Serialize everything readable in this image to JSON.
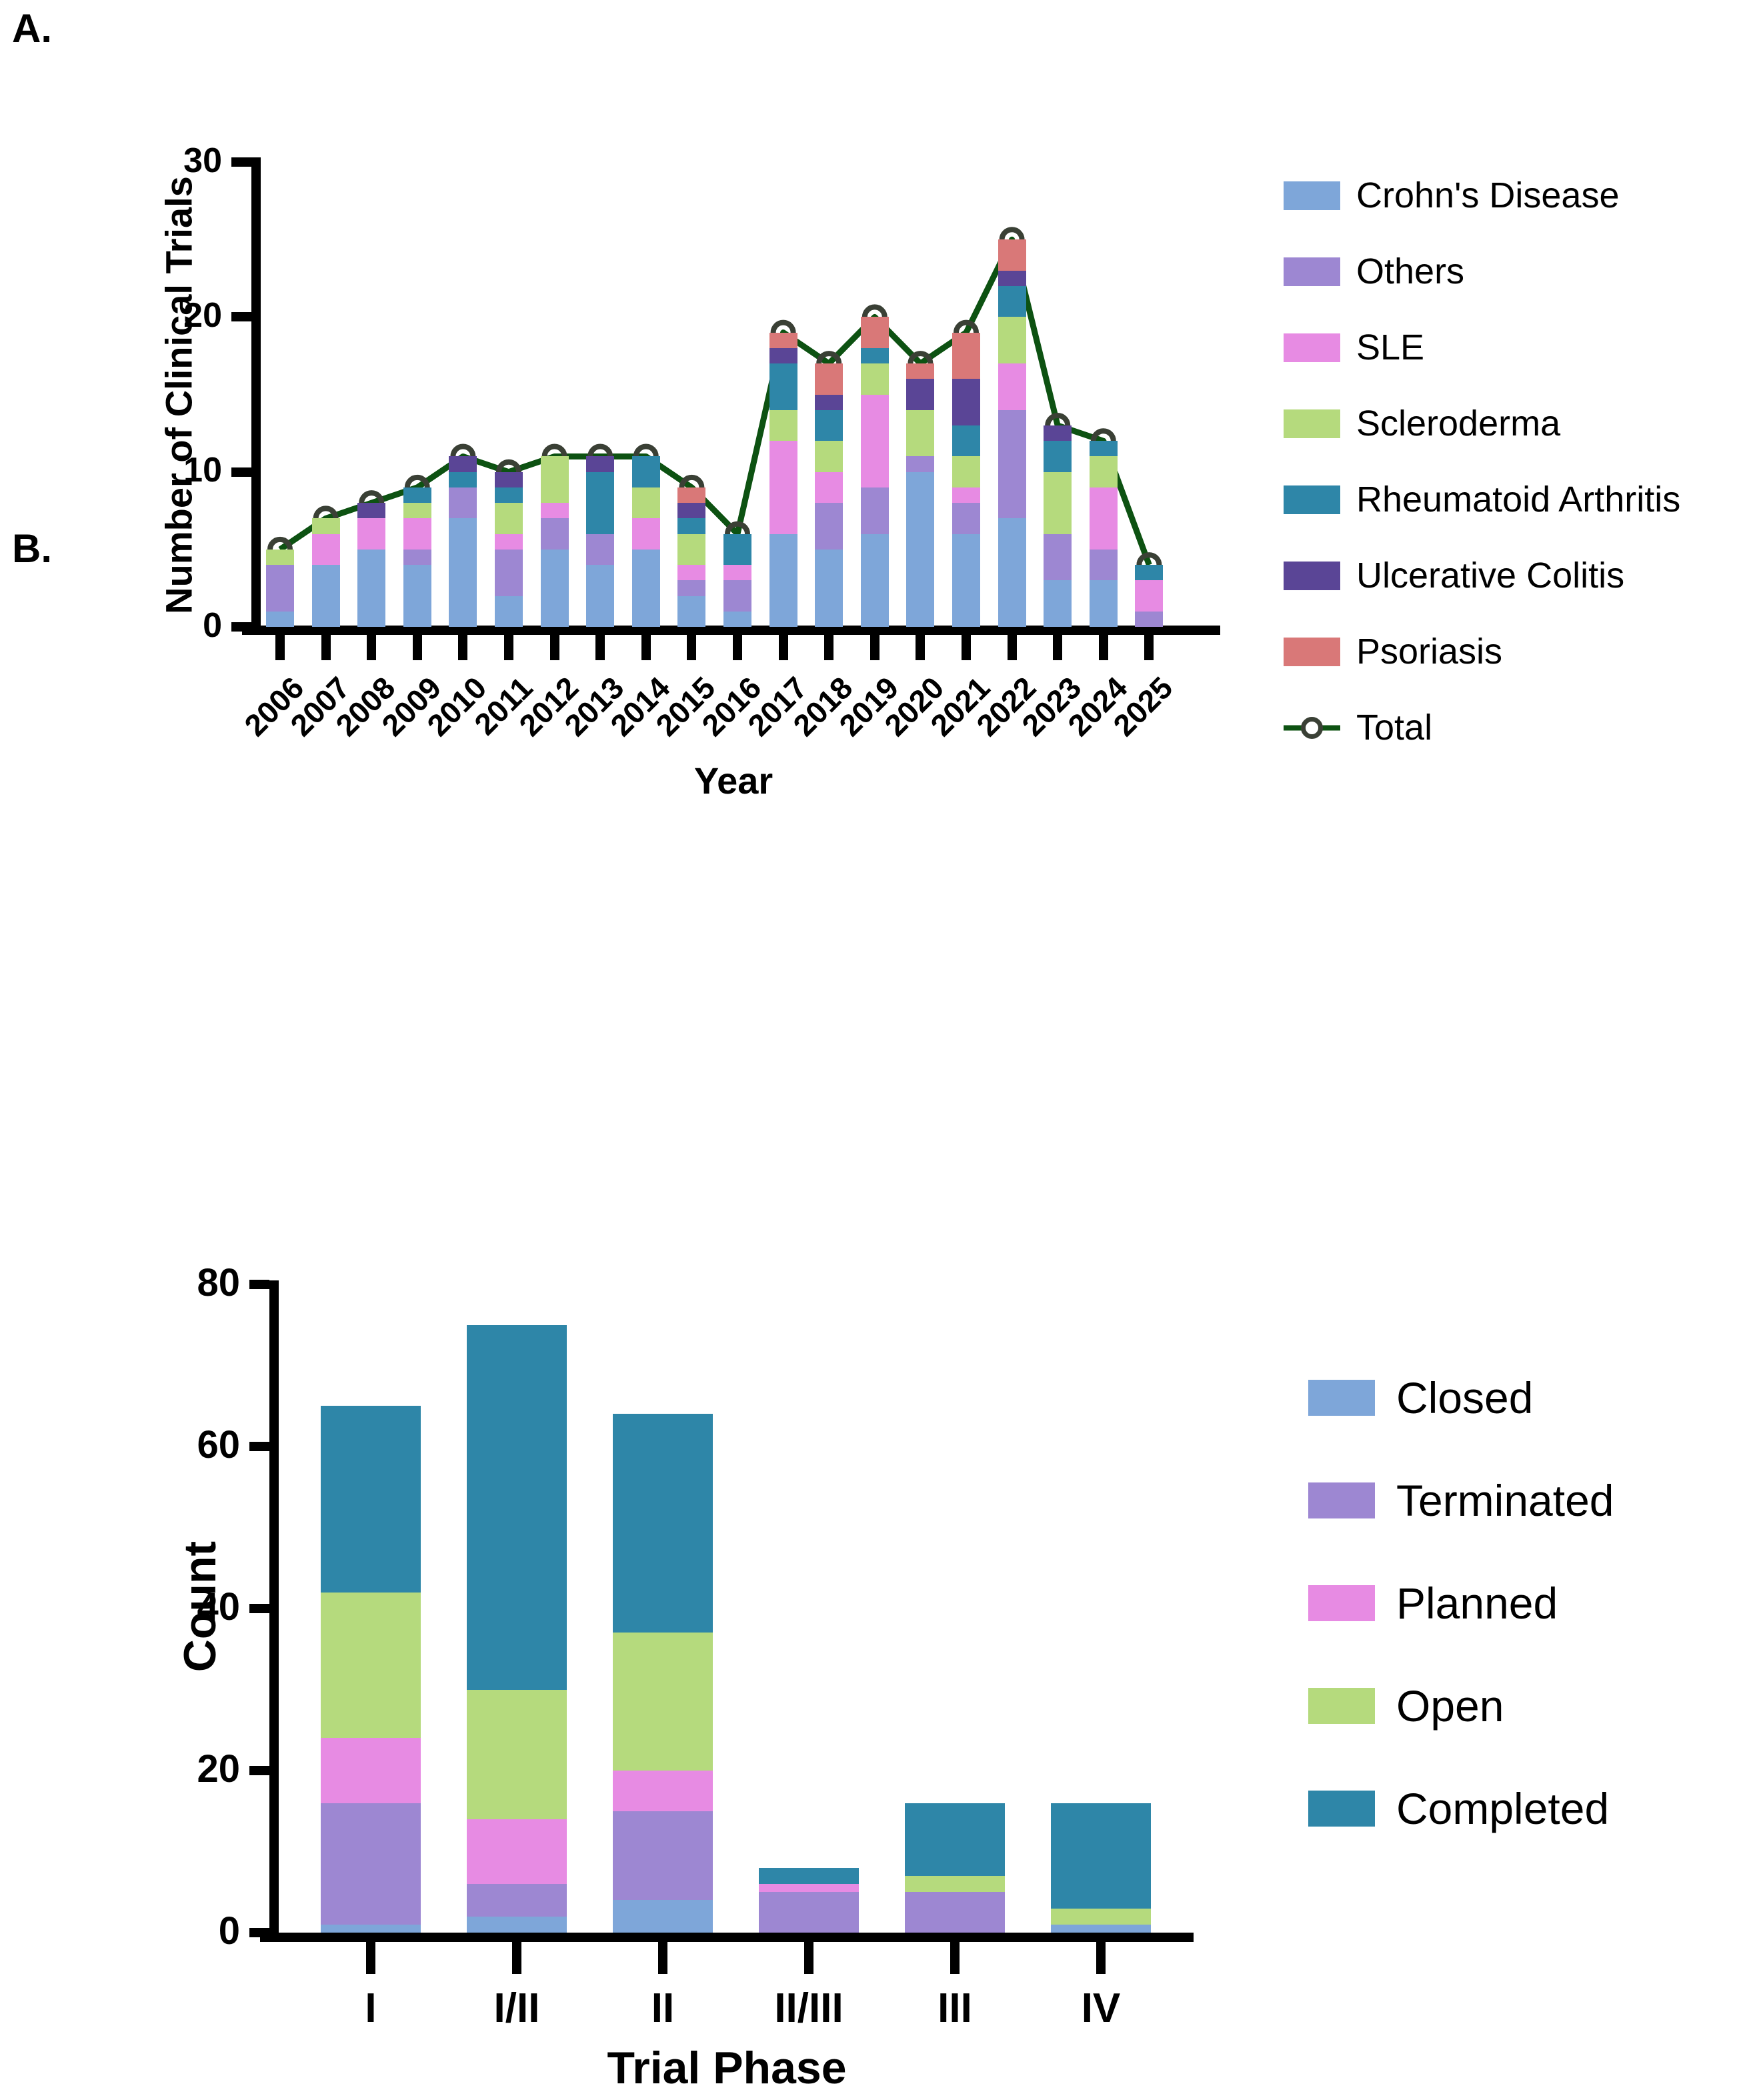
{
  "chart_data": [
    {
      "panel_label": "A.",
      "type": "bar",
      "stacked": true,
      "xlabel": "Year",
      "ylabel": "Number of Clinical Trials",
      "ylim": [
        0,
        30
      ],
      "yticks": [
        0,
        10,
        20,
        30
      ],
      "grid": false,
      "legend_position": "right",
      "categories": [
        "2006",
        "2007",
        "2008",
        "2009",
        "2010",
        "2011",
        "2012",
        "2013",
        "2014",
        "2015",
        "2016",
        "2017",
        "2018",
        "2019",
        "2020",
        "2021",
        "2022",
        "2023",
        "2024",
        "2025"
      ],
      "series": [
        {
          "name": "Crohn's Disease",
          "color": "#7EA6D9",
          "values": [
            1,
            4,
            5,
            4,
            7,
            2,
            5,
            4,
            5,
            2,
            1,
            6,
            5,
            6,
            10,
            6,
            7,
            3,
            3,
            0
          ]
        },
        {
          "name": "Others",
          "color": "#9D87D2",
          "values": [
            3,
            0,
            0,
            1,
            2,
            3,
            2,
            2,
            0,
            1,
            2,
            0,
            3,
            3,
            1,
            2,
            7,
            3,
            2,
            1
          ]
        },
        {
          "name": "SLE",
          "color": "#E78BE3",
          "values": [
            0,
            2,
            2,
            2,
            0,
            1,
            1,
            0,
            2,
            1,
            1,
            6,
            2,
            6,
            0,
            1,
            3,
            0,
            4,
            2
          ]
        },
        {
          "name": "Scleroderma",
          "color": "#B5DA7D",
          "values": [
            1,
            1,
            0,
            1,
            0,
            2,
            3,
            0,
            2,
            2,
            0,
            2,
            2,
            2,
            3,
            2,
            3,
            4,
            2,
            0
          ]
        },
        {
          "name": "Rheumatoid Arthritis",
          "color": "#2E86A8",
          "values": [
            0,
            0,
            0,
            1,
            1,
            1,
            0,
            4,
            2,
            1,
            2,
            3,
            2,
            1,
            0,
            2,
            2,
            2,
            1,
            1
          ]
        },
        {
          "name": "Ulcerative Colitis",
          "color": "#5A4596",
          "values": [
            0,
            0,
            1,
            0,
            1,
            1,
            0,
            1,
            0,
            1,
            0,
            1,
            1,
            0,
            2,
            3,
            1,
            1,
            0,
            0
          ]
        },
        {
          "name": "Psoriasis",
          "color": "#D97878",
          "values": [
            0,
            0,
            0,
            0,
            0,
            0,
            0,
            0,
            0,
            1,
            0,
            1,
            2,
            2,
            1,
            3,
            2,
            0,
            0,
            0
          ]
        }
      ],
      "line_series": {
        "name": "Total",
        "color": "#0D5212",
        "marker_ring": "#3A4035",
        "values": [
          5,
          7,
          8,
          9,
          11,
          10,
          11,
          11,
          11,
          9,
          6,
          19,
          17,
          20,
          17,
          19,
          25,
          13,
          12,
          4
        ]
      }
    },
    {
      "panel_label": "B.",
      "type": "bar",
      "stacked": true,
      "xlabel": "Trial Phase",
      "ylabel": "Count",
      "ylim": [
        0,
        80
      ],
      "yticks": [
        0,
        20,
        40,
        60,
        80
      ],
      "grid": false,
      "legend_position": "right",
      "categories": [
        "I",
        "I/II",
        "II",
        "II/III",
        "III",
        "IV"
      ],
      "series": [
        {
          "name": "Closed",
          "color": "#7EA6D9",
          "values": [
            1,
            2,
            4,
            0,
            0,
            1
          ]
        },
        {
          "name": "Terminated",
          "color": "#9D87D2",
          "values": [
            15,
            4,
            11,
            5,
            5,
            0
          ]
        },
        {
          "name": "Planned",
          "color": "#E78BE3",
          "values": [
            8,
            8,
            5,
            1,
            0,
            0
          ]
        },
        {
          "name": "Open",
          "color": "#B5DA7D",
          "values": [
            18,
            16,
            17,
            0,
            2,
            2
          ]
        },
        {
          "name": "Completed",
          "color": "#2E86A8",
          "values": [
            23,
            45,
            27,
            2,
            9,
            13
          ]
        }
      ]
    }
  ]
}
